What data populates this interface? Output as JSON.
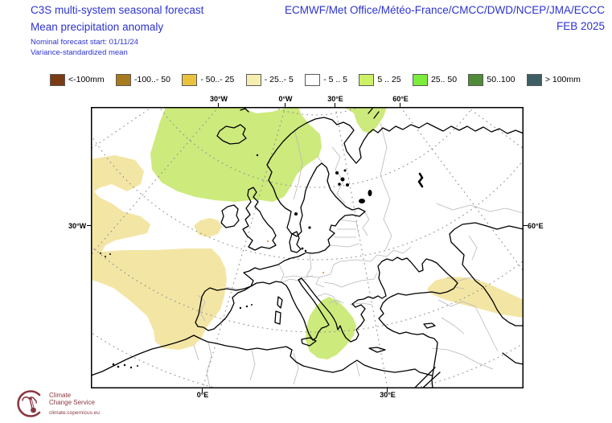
{
  "header": {
    "title": "C3S multi-system seasonal forecast",
    "subtitle": "Mean precipitation anomaly",
    "note1": "Nominal forecast start: 01/11/24",
    "note2": "Variance-standardized mean",
    "centers": "ECMWF/Met Office/Météo-France/CMCC/DWD/NCEP/JMA/ECCC",
    "valid_month": "FEB 2025"
  },
  "colors": {
    "title_blue": "#2d33d0",
    "logo_maroon": "#8a3742",
    "map_yellow": "#f3e5a4",
    "map_green": "#cdea7d",
    "map_orange": "#e2a33c",
    "coast_black": "#000000",
    "border_gray": "#b8b8b8",
    "graticule_gray": "#8f8f8f"
  },
  "legend": {
    "items": [
      {
        "label": "<-100mm",
        "color": "#7a3a14"
      },
      {
        "label": "-100..- 50",
        "color": "#a87a1e"
      },
      {
        "label": "- 50..- 25",
        "color": "#eac33e"
      },
      {
        "label": "- 25..- 5",
        "color": "#f5eeb0"
      },
      {
        "label": "- 5 .. 5",
        "color": "#ffffff"
      },
      {
        "label": "5 .. 25",
        "color": "#ccf166"
      },
      {
        "label": "25.. 50",
        "color": "#7dec3c"
      },
      {
        "label": "50..100",
        "color": "#4e8c38"
      },
      {
        "label": "> 100mm",
        "color": "#3d5f63"
      }
    ]
  },
  "map": {
    "axis": {
      "top": [
        "30°W",
        "0°W",
        "30°E",
        "60°E"
      ],
      "bottom": [
        "0°E",
        "30°E"
      ],
      "left": "30°W",
      "right": "60°E"
    }
  },
  "footer": {
    "logo_line1": "Climate",
    "logo_line2": "Change Service",
    "url": "climate.copernicus.eu"
  }
}
